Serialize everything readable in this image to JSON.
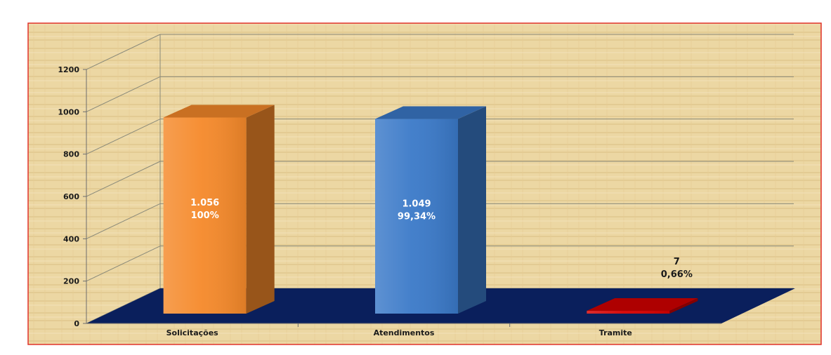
{
  "chart_data": {
    "type": "bar",
    "style": "3d-column",
    "categories": [
      "Solicitações",
      "Atendimentos",
      "Tramite"
    ],
    "values": [
      1056,
      1049,
      7
    ],
    "value_labels": [
      "1.056",
      "1.049",
      "7"
    ],
    "percent_labels": [
      "100%",
      "99,34%",
      "0,66%"
    ],
    "bar_colors": [
      "#f5892a",
      "#3a79c8",
      "#d40000"
    ],
    "floor_color": "#0a1f5c",
    "border_color": "#e0322a",
    "ylim": [
      0,
      1200
    ],
    "yticks": [
      0,
      200,
      400,
      600,
      800,
      1000,
      1200
    ],
    "ytick_labels": [
      "0",
      "200",
      "400",
      "600",
      "800",
      "1000",
      "1200"
    ],
    "grid": true,
    "legend": "none"
  }
}
